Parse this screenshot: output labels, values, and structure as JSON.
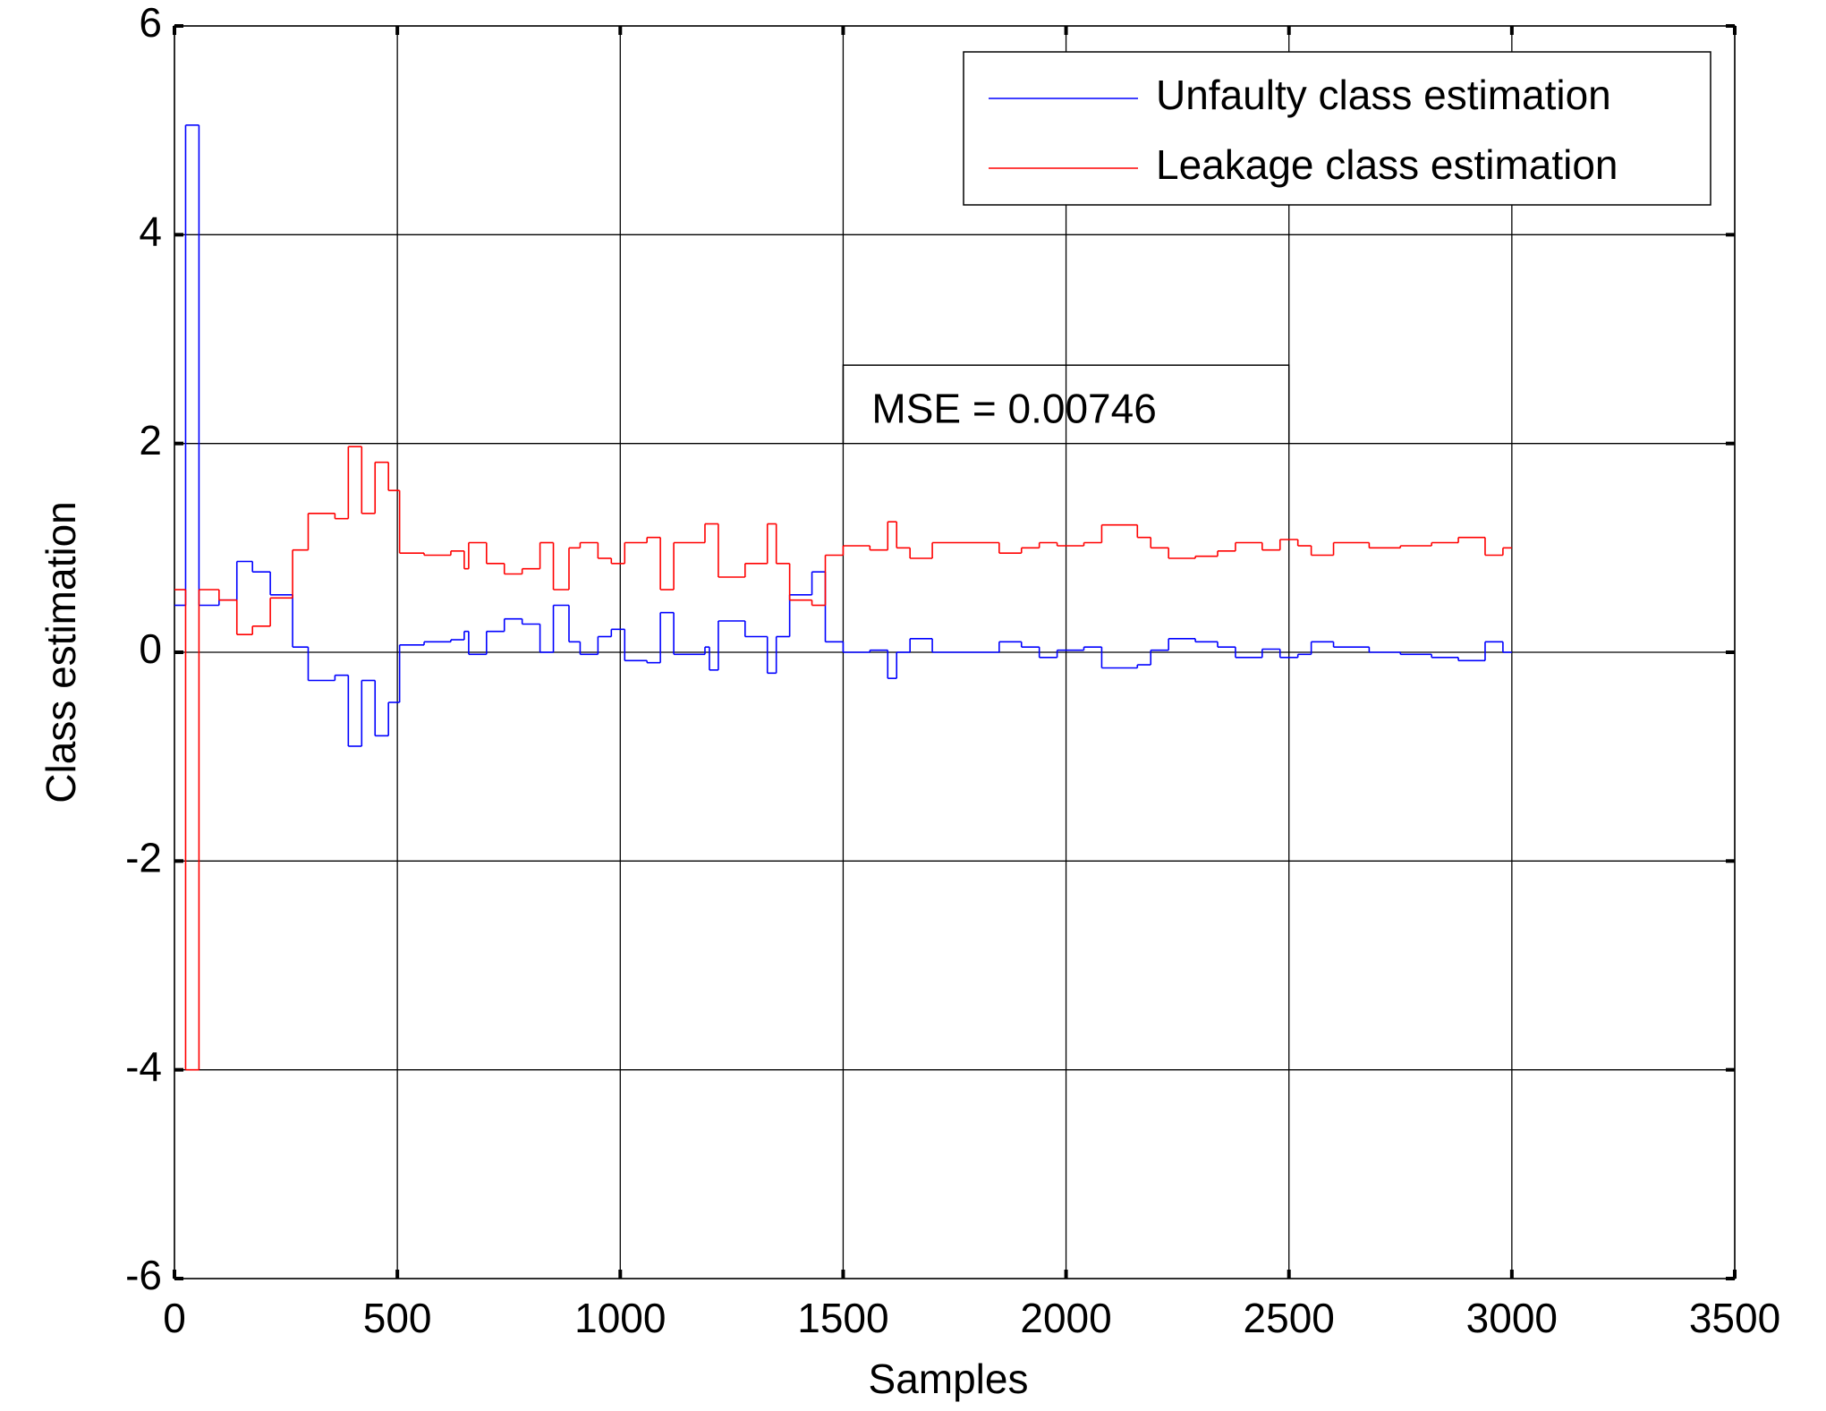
{
  "chart_data": {
    "type": "line",
    "step": "post",
    "xlabel": "Samples",
    "ylabel": "Class estimation",
    "annotation": "MSE = 0.00746",
    "x": [
      0,
      25,
      55,
      100,
      140,
      175,
      215,
      265,
      300,
      360,
      390,
      420,
      450,
      480,
      505,
      560,
      620,
      650,
      660,
      700,
      740,
      780,
      820,
      850,
      885,
      910,
      950,
      980,
      1010,
      1060,
      1090,
      1120,
      1190,
      1200,
      1220,
      1280,
      1330,
      1350,
      1380,
      1430,
      1460,
      1500,
      1560,
      1600,
      1620,
      1650,
      1700,
      1850,
      1900,
      1940,
      1980,
      2040,
      2080,
      2160,
      2190,
      2230,
      2290,
      2340,
      2380,
      2440,
      2480,
      2520,
      2550,
      2600,
      2680,
      2750,
      2820,
      2880,
      2940,
      2980,
      3000
    ],
    "series": [
      {
        "name": "Unfaulty class estimation",
        "color": "#0000ff",
        "values": [
          0.45,
          5.05,
          0.45,
          0.5,
          0.87,
          0.77,
          0.55,
          0.05,
          -0.27,
          -0.22,
          -0.9,
          -0.27,
          -0.8,
          -0.48,
          0.07,
          0.1,
          0.12,
          0.2,
          -0.02,
          0.2,
          0.32,
          0.27,
          0.0,
          0.45,
          0.1,
          -0.02,
          0.15,
          0.22,
          -0.08,
          -0.1,
          0.38,
          -0.02,
          0.05,
          -0.17,
          0.3,
          0.15,
          -0.2,
          0.15,
          0.55,
          0.77,
          0.1,
          0.0,
          0.02,
          -0.25,
          0.0,
          0.13,
          0.0,
          0.1,
          0.05,
          -0.05,
          0.02,
          0.05,
          -0.15,
          -0.12,
          0.02,
          0.13,
          0.1,
          0.05,
          -0.05,
          0.03,
          -0.05,
          -0.02,
          0.1,
          0.05,
          0.0,
          -0.02,
          -0.05,
          -0.08,
          0.1,
          0.0,
          0.0
        ]
      },
      {
        "name": "Leakage class estimation",
        "color": "#ff0000",
        "values": [
          0.6,
          -4.0,
          0.6,
          0.5,
          0.17,
          0.25,
          0.52,
          0.98,
          1.33,
          1.28,
          1.97,
          1.33,
          1.82,
          1.55,
          0.95,
          0.93,
          0.97,
          0.8,
          1.05,
          0.85,
          0.75,
          0.8,
          1.05,
          0.6,
          1.0,
          1.05,
          0.9,
          0.85,
          1.05,
          1.1,
          0.6,
          1.05,
          1.23,
          1.23,
          0.72,
          0.85,
          1.23,
          0.85,
          0.5,
          0.45,
          0.93,
          1.02,
          0.98,
          1.25,
          1.0,
          0.9,
          1.05,
          0.95,
          1.0,
          1.05,
          1.02,
          1.05,
          1.22,
          1.1,
          1.0,
          0.9,
          0.92,
          0.97,
          1.05,
          0.98,
          1.08,
          1.02,
          0.93,
          1.05,
          1.0,
          1.02,
          1.05,
          1.1,
          0.93,
          1.0,
          1.0
        ]
      }
    ],
    "xlim": [
      0,
      3500
    ],
    "xticks": [
      0,
      500,
      1000,
      1500,
      2000,
      2500,
      3000,
      3500
    ],
    "ylim": [
      -6,
      6
    ],
    "yticks": [
      -6,
      -4,
      -2,
      0,
      2,
      4,
      6
    ],
    "grid": true,
    "legend": "upper right"
  }
}
